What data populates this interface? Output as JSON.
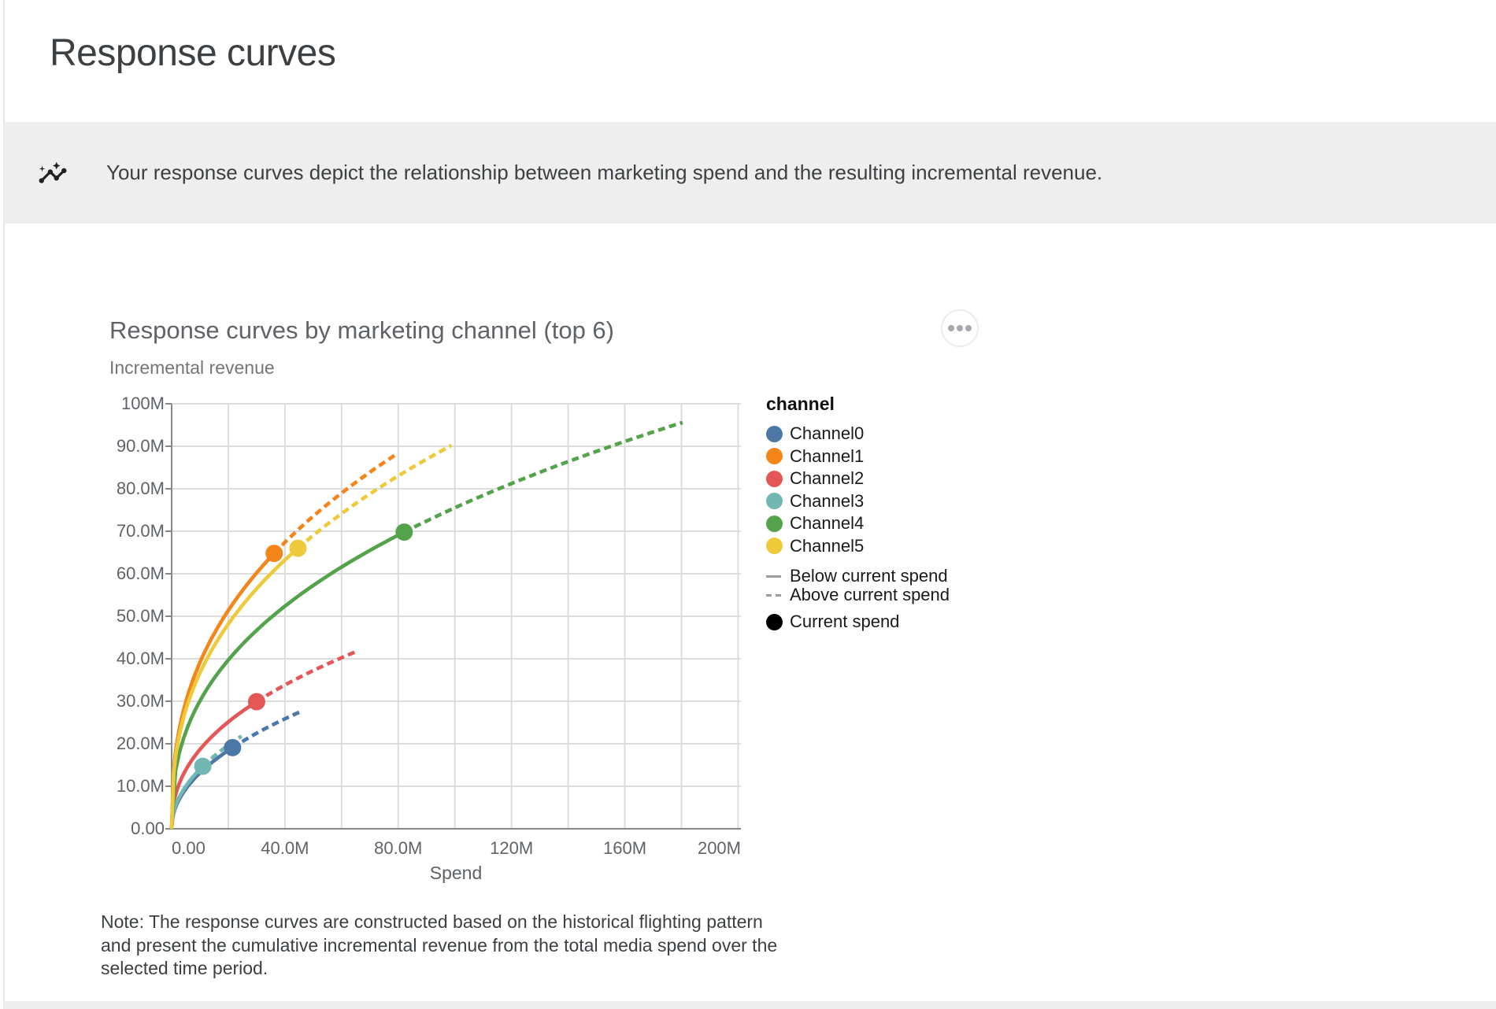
{
  "page": {
    "title": "Response curves"
  },
  "banner": {
    "icon_name": "insights-icon",
    "text": "Your response curves depict the relationship between marketing spend and the resulting incremental revenue.",
    "background_color": "#eeeeee"
  },
  "chart": {
    "title": "Response curves by marketing channel (top 6)",
    "subtitle": "Incremental revenue",
    "menu_icon_name": "more-horizontal-icon"
  },
  "chart_data": {
    "type": "line",
    "title": "Response curves by marketing channel (top 6)",
    "xlabel": "Spend",
    "ylabel": "Incremental revenue",
    "units": "currency, millions (M)",
    "x_max": 201,
    "y_max": 100,
    "grid": true,
    "x_ticks": [
      {
        "value": 0,
        "label": "0.00"
      },
      {
        "value": 20,
        "label": ""
      },
      {
        "value": 40,
        "label": "40.0M"
      },
      {
        "value": 60,
        "label": ""
      },
      {
        "value": 80,
        "label": "80.0M"
      },
      {
        "value": 100,
        "label": ""
      },
      {
        "value": 120,
        "label": "120M"
      },
      {
        "value": 140,
        "label": ""
      },
      {
        "value": 160,
        "label": "160M"
      },
      {
        "value": 180,
        "label": ""
      },
      {
        "value": 200,
        "label": "200M"
      }
    ],
    "y_ticks": [
      {
        "value": 0,
        "label": "0.00"
      },
      {
        "value": 10,
        "label": "10.0M"
      },
      {
        "value": 20,
        "label": "20.0M"
      },
      {
        "value": 30,
        "label": "30.0M"
      },
      {
        "value": 40,
        "label": "40.0M"
      },
      {
        "value": 50,
        "label": "50.0M"
      },
      {
        "value": 60,
        "label": "60.0M"
      },
      {
        "value": 70,
        "label": "70.0M"
      },
      {
        "value": 80,
        "label": "80.0M"
      },
      {
        "value": 90,
        "label": "90.0M"
      },
      {
        "value": 100,
        "label": "100M"
      }
    ],
    "series": [
      {
        "name": "Channel0",
        "color": "#4c78a8",
        "current_spend_m": 21.5,
        "current_revenue_m": 19.1,
        "max_spend_m": 46.0,
        "max_revenue_m": 27.7
      },
      {
        "name": "Channel1",
        "color": "#f58518",
        "current_spend_m": 36.2,
        "current_revenue_m": 64.8,
        "max_spend_m": 79.3,
        "max_revenue_m": 88.1
      },
      {
        "name": "Channel2",
        "color": "#e45756",
        "current_spend_m": 30.0,
        "current_revenue_m": 29.9,
        "max_spend_m": 65.9,
        "max_revenue_m": 41.9
      },
      {
        "name": "Channel3",
        "color": "#72b7b2",
        "current_spend_m": 11.0,
        "current_revenue_m": 14.7,
        "max_spend_m": 24.7,
        "max_revenue_m": 21.8
      },
      {
        "name": "Channel4",
        "color": "#54a24b",
        "current_spend_m": 82.1,
        "current_revenue_m": 69.8,
        "max_spend_m": 180.4,
        "max_revenue_m": 95.6
      },
      {
        "name": "Channel5",
        "color": "#eeca3b",
        "current_spend_m": 44.6,
        "current_revenue_m": 66.0,
        "max_spend_m": 98.8,
        "max_revenue_m": 90.2
      }
    ],
    "legend": {
      "title": "channel",
      "position": "right",
      "line_styles": [
        {
          "label": "Below current spend",
          "style": "solid",
          "color": "#9e9e9e"
        },
        {
          "label": "Above current spend",
          "style": "dashed",
          "color": "#9e9e9e"
        }
      ],
      "point_marker": {
        "label": "Current spend",
        "color": "#000000"
      }
    },
    "style_colors": {
      "gridline": "#dcdcdc",
      "axis_domain": "#888888",
      "tick_label": "#5f6368"
    }
  },
  "note": {
    "lines": [
      "Note: The response curves are constructed based on the historical flighting pattern",
      "and present the cumulative incremental revenue from the total media spend over the",
      "selected time period."
    ]
  }
}
